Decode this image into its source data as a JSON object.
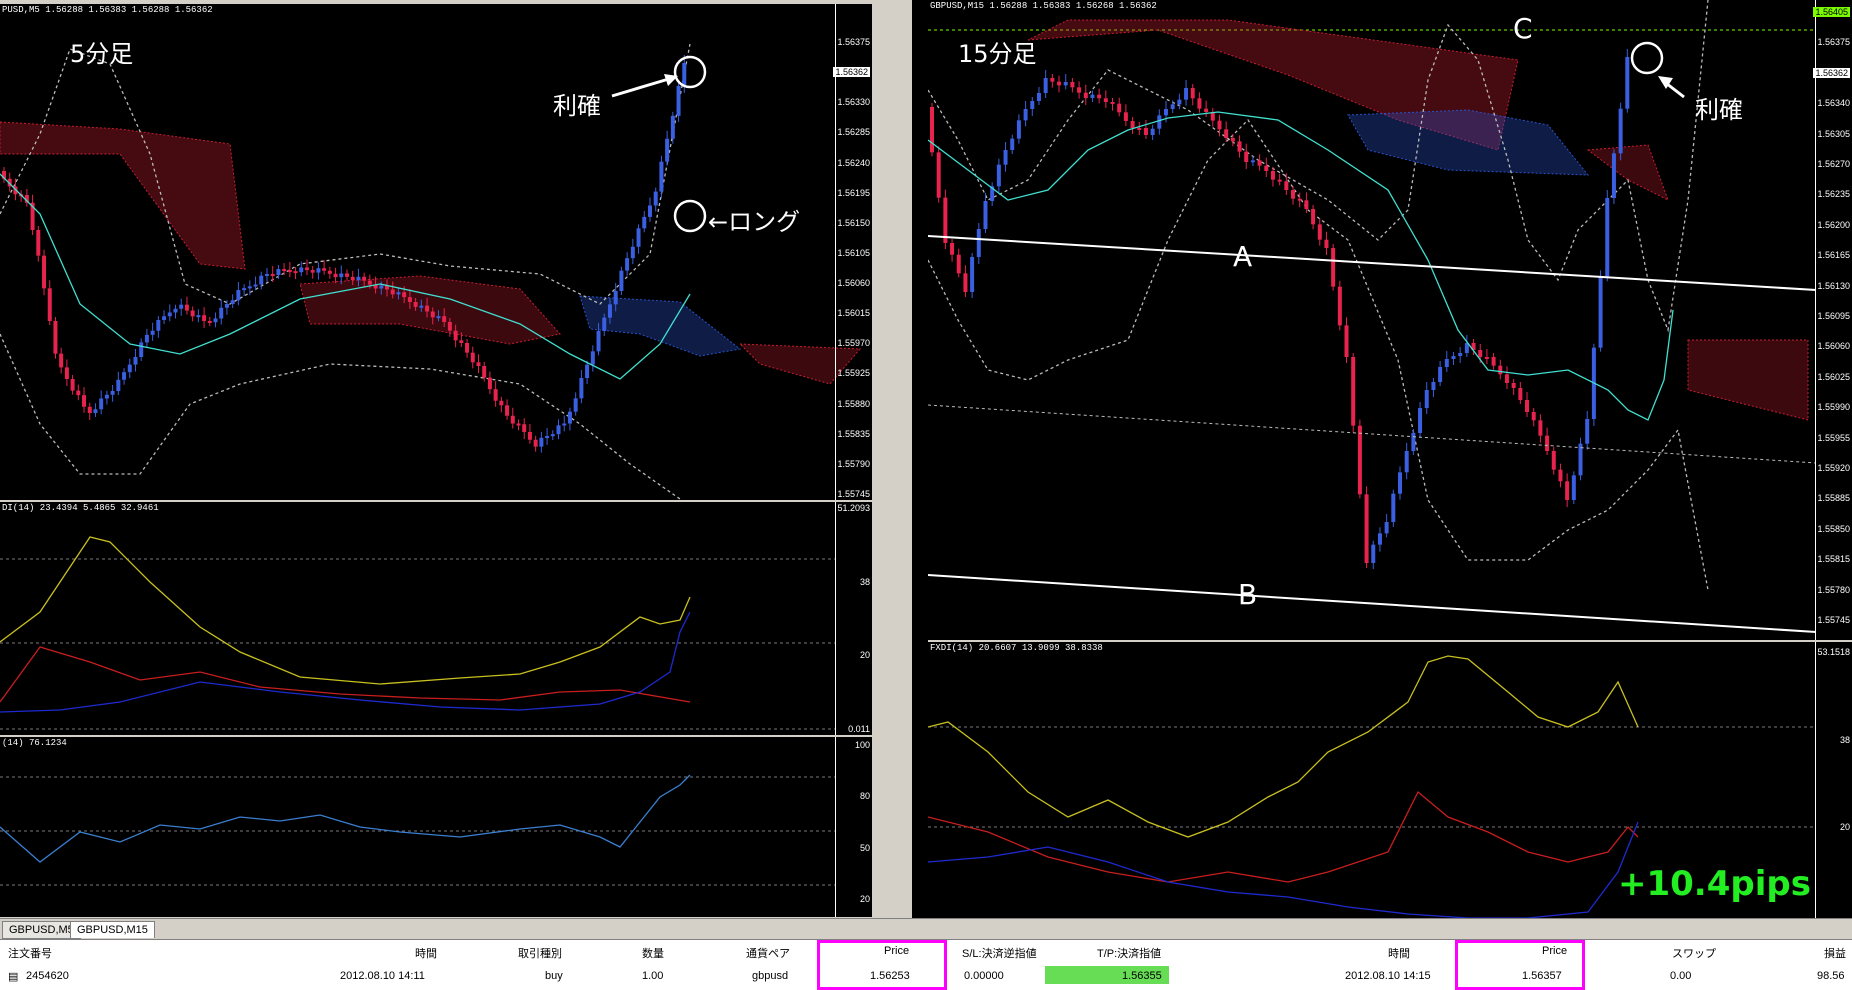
{
  "left_chart": {
    "header": "PUSD,M5  1.56288 1.56383 1.56288 1.56362",
    "timeframe_label": "5分足",
    "annotations": {
      "take_profit": "利確",
      "long": "←ロング"
    },
    "price_ticks": [
      "1.56375",
      "1.56362",
      "1.56330",
      "1.56285",
      "1.56240",
      "1.56195",
      "1.56150",
      "1.56105",
      "1.56060",
      "1.56015",
      "1.55970",
      "1.55925",
      "1.55880",
      "1.55835",
      "1.55790",
      "1.55745"
    ],
    "current_price": "1.56362",
    "fxdi_header": "DI(14) 23.4394 5.4865 32.9461",
    "fxdi_ticks": [
      "51.2093",
      "38",
      "20",
      "0.011"
    ],
    "rsi_header": "(14) 76.1234",
    "rsi_ticks": [
      "100",
      "80",
      "50",
      "20"
    ]
  },
  "right_chart": {
    "header": "GBPUSD,M15  1.56288 1.56383 1.56268 1.56362",
    "timeframe_label": "15分足",
    "annotations": {
      "take_profit": "利確",
      "line_a": "A",
      "line_b": "B",
      "line_c": "C",
      "result": "+10.4pips"
    },
    "price_ticks": [
      "1.56405",
      "1.56375",
      "1.56362",
      "1.56340",
      "1.56305",
      "1.56270",
      "1.56235",
      "1.56200",
      "1.56165",
      "1.56130",
      "1.56095",
      "1.56060",
      "1.56025",
      "1.55990",
      "1.55955",
      "1.55920",
      "1.55885",
      "1.55850",
      "1.55815",
      "1.55780",
      "1.55745"
    ],
    "current_price": "1.56362",
    "top_price": "1.56405",
    "fxdi_header": "FXDI(14) 20.6607 13.9099 38.8338",
    "fxdi_ticks": [
      "53.1518",
      "38",
      "20"
    ]
  },
  "tabs": [
    "GBPUSD,M5",
    "GBPUSD,M15"
  ],
  "terminal": {
    "headers": [
      "注文番号",
      "時間",
      "取引種別",
      "数量",
      "通貨ペア",
      "Price",
      "S/L:決済逆指値",
      "T/P:決済指値",
      "時間",
      "Price",
      "スワップ",
      "損益"
    ],
    "row": {
      "ticket": "2454620",
      "open_time": "2012.08.10 14:11",
      "type": "buy",
      "size": "1.00",
      "symbol": "gbpusd",
      "open_price": "1.56253",
      "sl": "0.00000",
      "tp": "1.56355",
      "close_time": "2012.08.10 14:15",
      "close_price": "1.56357",
      "swap": "0.00",
      "profit": "98.56"
    }
  },
  "colors": {
    "bull": "#3a5fe0",
    "bear": "#e8234e",
    "ma": "#40e0d0",
    "adx": "#c8c020",
    "di_minus": "#c81e1e",
    "di_plus": "#1e2ad0",
    "rsi": "#3a7fd0",
    "highlight": "#ff00ff",
    "pips": "#22ee22"
  }
}
